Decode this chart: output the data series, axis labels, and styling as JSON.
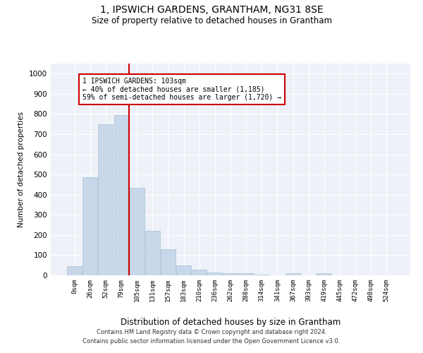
{
  "title": "1, IPSWICH GARDENS, GRANTHAM, NG31 8SE",
  "subtitle": "Size of property relative to detached houses in Grantham",
  "xlabel": "Distribution of detached houses by size in Grantham",
  "ylabel": "Number of detached properties",
  "bar_color": "#c8d8ea",
  "bar_edgecolor": "#a8c0d4",
  "background_color": "#eef2f8",
  "categories": [
    "0sqm",
    "26sqm",
    "52sqm",
    "79sqm",
    "105sqm",
    "131sqm",
    "157sqm",
    "183sqm",
    "210sqm",
    "236sqm",
    "262sqm",
    "288sqm",
    "314sqm",
    "341sqm",
    "367sqm",
    "393sqm",
    "419sqm",
    "445sqm",
    "472sqm",
    "498sqm",
    "524sqm"
  ],
  "values": [
    45,
    485,
    750,
    795,
    435,
    220,
    128,
    50,
    28,
    15,
    10,
    10,
    5,
    0,
    10,
    0,
    10,
    0,
    0,
    0,
    0
  ],
  "ylim": [
    0,
    1050
  ],
  "yticks": [
    0,
    100,
    200,
    300,
    400,
    500,
    600,
    700,
    800,
    900,
    1000
  ],
  "red_line_x": 4,
  "annotation_text": "1 IPSWICH GARDENS: 103sqm\n← 40% of detached houses are smaller (1,185)\n59% of semi-detached houses are larger (1,720) →",
  "annotation_box_color": "#ffffff",
  "annotation_box_edgecolor": "#cc0000",
  "footer_line1": "Contains HM Land Registry data © Crown copyright and database right 2024.",
  "footer_line2": "Contains public sector information licensed under the Open Government Licence v3.0.",
  "red_line_color": "#cc0000",
  "grid_color": "#ffffff"
}
